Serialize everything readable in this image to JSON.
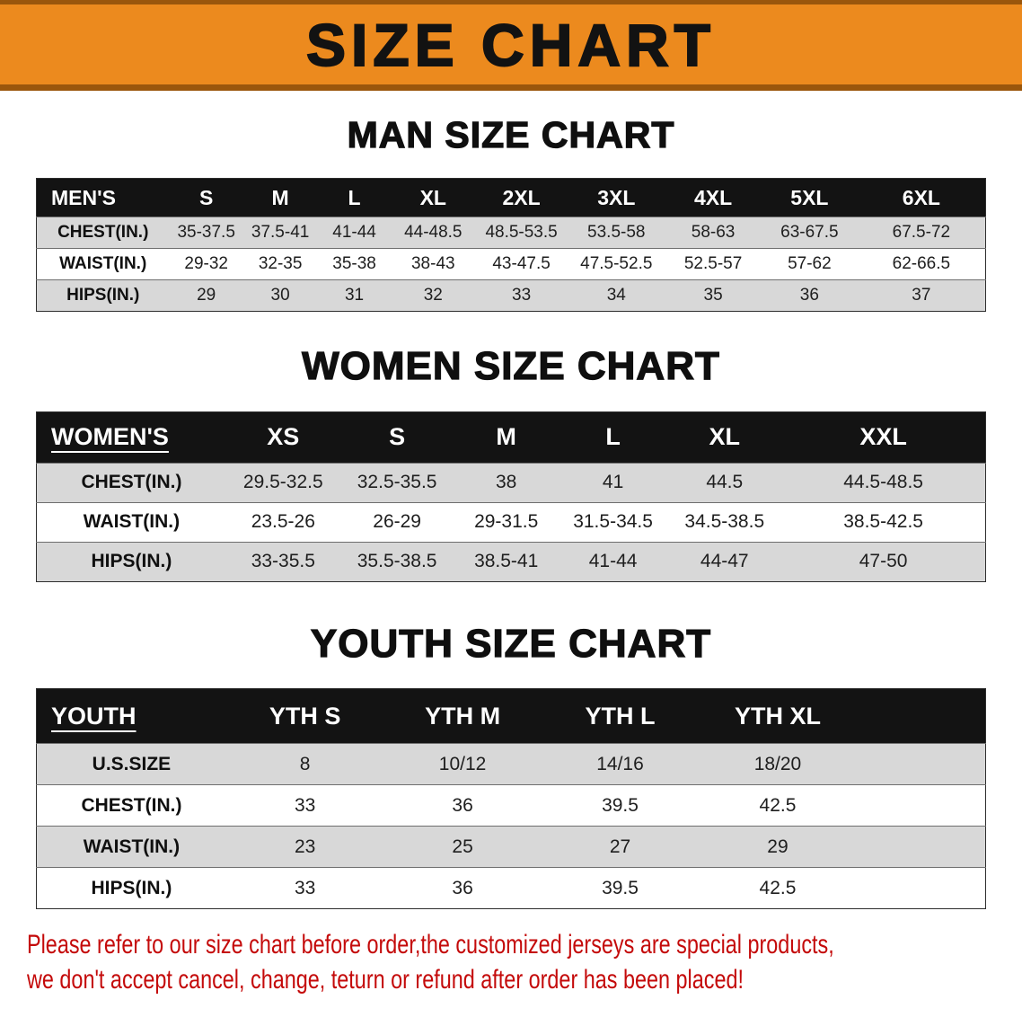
{
  "banner": {
    "title": "SIZE CHART"
  },
  "colors": {
    "banner_orange": "#EC8A1E",
    "banner_edge": "#9A560C",
    "table_header_black": "#131313",
    "row_gray": "#D8D8D8",
    "note_red": "#C40A0A"
  },
  "men": {
    "heading": "MAN SIZE CHART",
    "table": {
      "label": "MEN'S",
      "columns": [
        "S",
        "M",
        "L",
        "XL",
        "2XL",
        "3XL",
        "4XL",
        "5XL",
        "6XL"
      ],
      "rows": [
        {
          "label": "CHEST(IN.)",
          "values": [
            "35-37.5",
            "37.5-41",
            "41-44",
            "44-48.5",
            "48.5-53.5",
            "53.5-58",
            "58-63",
            "63-67.5",
            "67.5-72"
          ]
        },
        {
          "label": "WAIST(IN.)",
          "values": [
            "29-32",
            "32-35",
            "35-38",
            "38-43",
            "43-47.5",
            "47.5-52.5",
            "52.5-57",
            "57-62",
            "62-66.5"
          ]
        },
        {
          "label": "HIPS(IN.)",
          "values": [
            "29",
            "30",
            "31",
            "32",
            "33",
            "34",
            "35",
            "36",
            "37"
          ]
        }
      ]
    }
  },
  "women": {
    "heading": "WOMEN SIZE CHART",
    "table": {
      "label": "WOMEN'S",
      "columns": [
        "XS",
        "S",
        "M",
        "L",
        "XL",
        "XXL"
      ],
      "rows": [
        {
          "label": "CHEST(IN.)",
          "values": [
            "29.5-32.5",
            "32.5-35.5",
            "38",
            "41",
            "44.5",
            "44.5-48.5"
          ]
        },
        {
          "label": "WAIST(IN.)",
          "values": [
            "23.5-26",
            "26-29",
            "29-31.5",
            "31.5-34.5",
            "34.5-38.5",
            "38.5-42.5"
          ]
        },
        {
          "label": "HIPS(IN.)",
          "values": [
            "33-35.5",
            "35.5-38.5",
            "38.5-41",
            "41-44",
            "44-47",
            "47-50"
          ]
        }
      ]
    }
  },
  "youth": {
    "heading": "YOUTH SIZE CHART",
    "table": {
      "label": "YOUTH",
      "columns": [
        "YTH S",
        "YTH M",
        "YTH L",
        "YTH XL"
      ],
      "rows": [
        {
          "label": "U.S.SIZE",
          "values": [
            "8",
            "10/12",
            "14/16",
            "18/20"
          ]
        },
        {
          "label": "CHEST(IN.)",
          "values": [
            "33",
            "36",
            "39.5",
            "42.5"
          ]
        },
        {
          "label": "WAIST(IN.)",
          "values": [
            "23",
            "25",
            "27",
            "29"
          ]
        },
        {
          "label": "HIPS(IN.)",
          "values": [
            "33",
            "36",
            "39.5",
            "42.5"
          ]
        }
      ]
    }
  },
  "footer": {
    "lines": [
      "Please refer to our size chart before order,the customized jerseys are special products,",
      "we don't accept cancel, change, teturn or refund after order has been placed!"
    ]
  }
}
